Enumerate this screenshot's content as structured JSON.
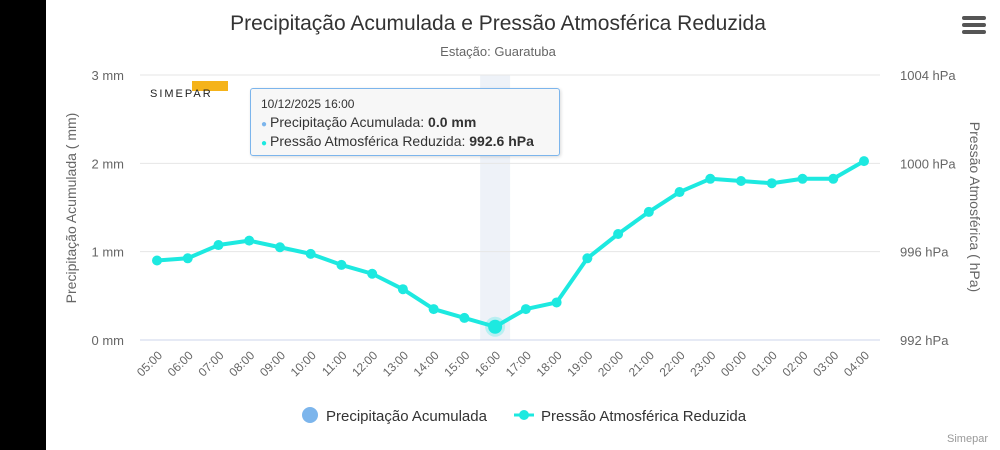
{
  "chart_data": {
    "type": "line",
    "title": "Precipitação Acumulada e Pressão Atmosférica Reduzida",
    "subtitle": "Estação: Guaratuba",
    "categories": [
      "05:00",
      "06:00",
      "07:00",
      "08:00",
      "09:00",
      "10:00",
      "11:00",
      "12:00",
      "13:00",
      "14:00",
      "15:00",
      "16:00",
      "17:00",
      "18:00",
      "19:00",
      "20:00",
      "21:00",
      "22:00",
      "23:00",
      "00:00",
      "01:00",
      "02:00",
      "03:00",
      "04:00"
    ],
    "y_left": {
      "label": "Precipitação Acumulada ( mm)",
      "ylim": [
        0,
        3
      ],
      "ticks": [
        "0 mm",
        "1 mm",
        "2 mm",
        "3 mm"
      ]
    },
    "y_right": {
      "label": "Pressão Atmosférica ( hPa)",
      "ylim": [
        992,
        1004
      ],
      "ticks": [
        "992 hPa",
        "996 hPa",
        "1000 hPa",
        "1004 hPa"
      ]
    },
    "series": [
      {
        "name": "Precipitação Acumulada",
        "color": "#7cb5ec",
        "values": [
          0,
          0,
          0,
          0,
          0,
          0,
          0,
          0,
          0,
          0,
          0,
          0,
          0,
          0,
          0,
          0,
          0,
          0,
          0,
          0,
          0,
          0,
          0,
          0
        ]
      },
      {
        "name": "Pressão Atmosférica Reduzida",
        "color": "#1de9e0",
        "values": [
          995.6,
          995.7,
          996.3,
          996.5,
          996.2,
          995.9,
          995.4,
          995.0,
          994.3,
          993.4,
          993.0,
          992.6,
          993.4,
          993.7,
          995.7,
          996.8,
          997.8,
          998.7,
          999.3,
          999.2,
          999.1,
          999.3,
          999.3,
          1000.1
        ]
      }
    ],
    "highlight_index": 11,
    "legend": "bottom-center",
    "grid": true
  },
  "tooltip": {
    "date": "10/12/2025 16:00",
    "series1_label": "Precipitação Acumulada: ",
    "series1_value": "0.0 mm",
    "series2_label": "Pressão Atmosférica Reduzida: ",
    "series2_value": "992.6 hPa"
  },
  "logo_text": "SIMEPAR",
  "credit": "Simepar"
}
